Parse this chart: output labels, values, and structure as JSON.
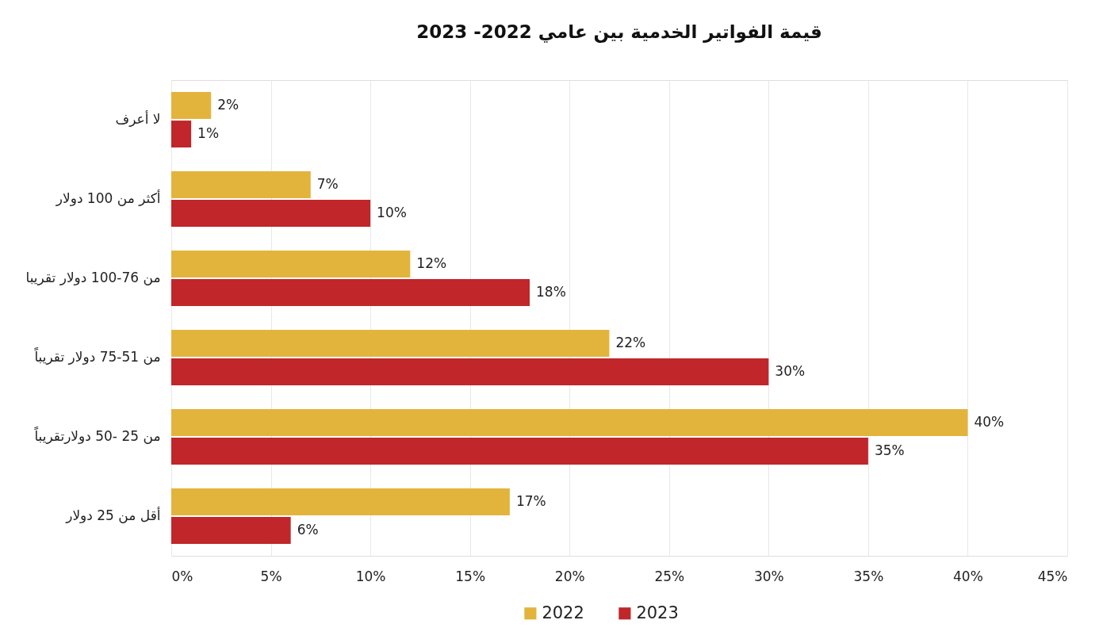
{
  "chart_data": {
    "type": "bar",
    "orientation": "horizontal",
    "title": "قيمة الفواتير الخدمية بين عامي 2022- 2023",
    "categories": [
      "لا أعرف",
      "أكثر من 100 دولار",
      "من 76-100 دولار تقريبا",
      "من 51-75 دولار تقريباً",
      "من 25 -50 دولارتقريباً",
      "أقل من 25 دولار"
    ],
    "series": [
      {
        "name": "2022",
        "color": "#e3b43c",
        "values": [
          2,
          7,
          12,
          22,
          40,
          17
        ],
        "value_labels": [
          "2%",
          "7%",
          "12%",
          "22%",
          "40%",
          "17%"
        ]
      },
      {
        "name": "2023",
        "color": "#c0262a",
        "values": [
          1,
          10,
          18,
          30,
          35,
          6
        ],
        "value_labels": [
          "1%",
          "10%",
          "18%",
          "30%",
          "35%",
          "6%"
        ]
      }
    ],
    "xlim": [
      0,
      45
    ],
    "xticks": [
      {
        "value": 0,
        "label": "0%"
      },
      {
        "value": 5,
        "label": "5%"
      },
      {
        "value": 10,
        "label": "10%"
      },
      {
        "value": 15,
        "label": "15%"
      },
      {
        "value": 20,
        "label": "20%"
      },
      {
        "value": 25,
        "label": "25%"
      },
      {
        "value": 30,
        "label": "30%"
      },
      {
        "value": 35,
        "label": "35%"
      },
      {
        "value": 40,
        "label": "40%"
      },
      {
        "value": 45,
        "label": "45%"
      }
    ],
    "grid": "x",
    "legend": "bottom"
  }
}
